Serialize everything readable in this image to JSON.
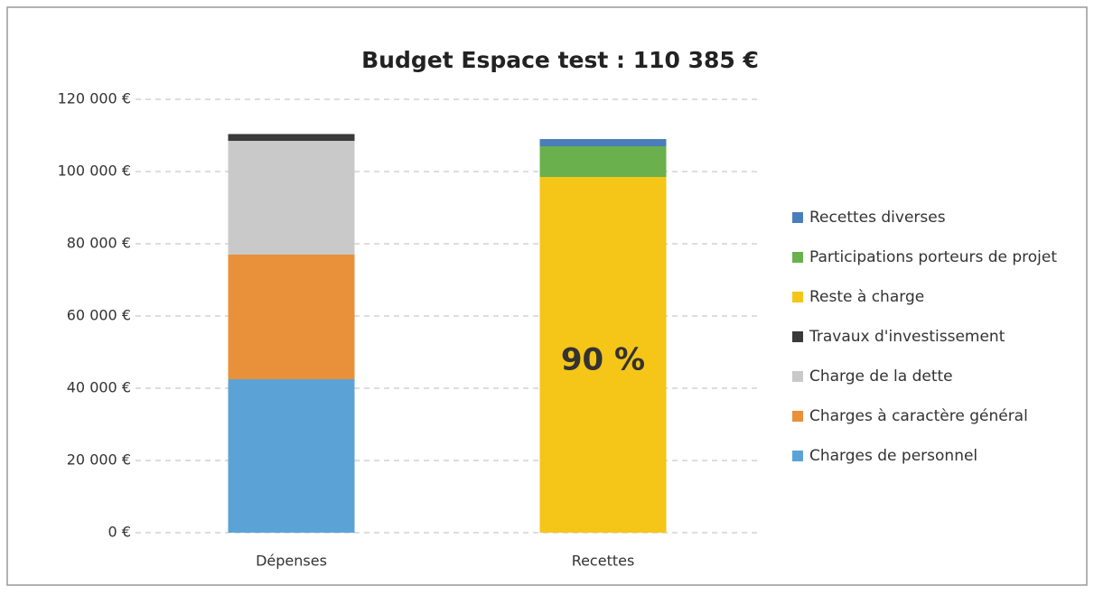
{
  "chart_data": {
    "type": "stacked-bar",
    "title": "Budget Espace test : 110 385 €",
    "categories": [
      "Dépenses",
      "Recettes"
    ],
    "series": [
      {
        "name": "Charges de personnel",
        "color": "#5ba3d6",
        "values": [
          42500,
          null
        ]
      },
      {
        "name": "Charges à caractère général",
        "color": "#e8913a",
        "values": [
          34500,
          null
        ]
      },
      {
        "name": "Charge de la dette",
        "color": "#c9c9c9",
        "values": [
          31500,
          null
        ]
      },
      {
        "name": "Travaux d'investissement",
        "color": "#3a3a3a",
        "values": [
          1885,
          null
        ]
      },
      {
        "name": "Reste à charge",
        "color": "#f5c518",
        "values": [
          null,
          98500
        ]
      },
      {
        "name": "Participations porteurs de projet",
        "color": "#6ab04c",
        "values": [
          null,
          8500
        ]
      },
      {
        "name": "Recettes diverses",
        "color": "#4a7ebb",
        "values": [
          null,
          2000
        ]
      }
    ],
    "annotations": [
      "90 %"
    ],
    "ylim": [
      0,
      120000
    ],
    "yticks": [
      {
        "value": 0,
        "label": "0 €"
      },
      {
        "value": 20000,
        "label": "20 000 €"
      },
      {
        "value": 40000,
        "label": "40 000 €"
      },
      {
        "value": 60000,
        "label": "60 000 €"
      },
      {
        "value": 80000,
        "label": "80 000 €"
      },
      {
        "value": 100000,
        "label": "100 000 €"
      },
      {
        "value": 120000,
        "label": "120 000 €"
      }
    ],
    "grid": true,
    "legend": "right"
  }
}
